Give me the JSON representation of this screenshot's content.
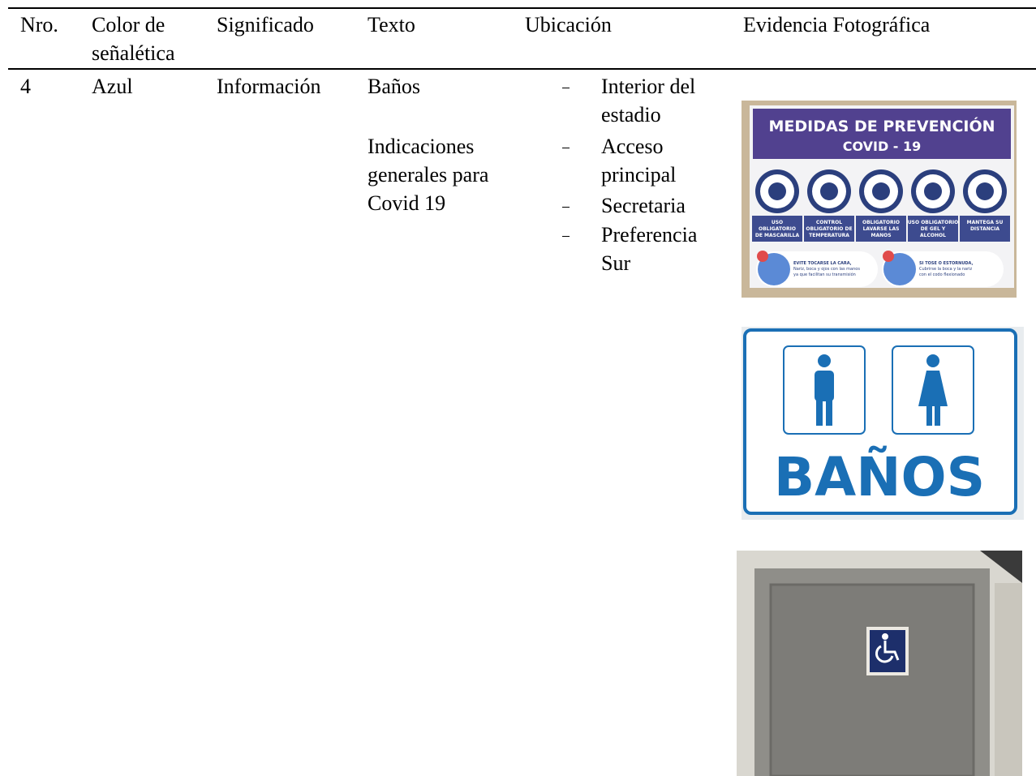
{
  "table": {
    "headers": [
      "Nro.",
      "Color de señalética",
      "Significado",
      "Texto",
      "Ubicación",
      "Evidencia Fotográfica"
    ],
    "rows": [
      {
        "nro": "4",
        "color": "Azul",
        "significado": "Información",
        "texto": [
          "Baños",
          "Indicaciones generales para Covid 19"
        ],
        "ubicacion": [
          "Interior del estadio",
          "Acceso principal",
          "Secretaria",
          "Preferencia Sur"
        ],
        "evidencia": {
          "covid_sign": {
            "title": "MEDIDAS DE PREVENCIÓN",
            "subtitle": "COVID - 19",
            "labels": [
              [
                "USO",
                "OBLIGATORIO",
                "DE MASCARILLA"
              ],
              [
                "CONTROL",
                "OBLIGATORIO DE",
                "TEMPERATURA"
              ],
              [
                "OBLIGATORIO",
                "LAVARSE LAS",
                "MANOS"
              ],
              [
                "USO OBLIGATORIO",
                "DE GEL Y",
                "ALCOHOL"
              ],
              [
                "MANTEGA SU",
                "DISTANCIA"
              ]
            ],
            "notes": [
              [
                "EVITE TOCARSE LA CARA,",
                "Nariz, boca y ojos con las manos",
                "ya que facilitan su transmisión"
              ],
              [
                "SI TOSE O ESTORNUDA,",
                "Cubrirse la boca y la nariz",
                "con el codo flexionado"
              ]
            ]
          },
          "banos_sign": {
            "title": "BAÑOS"
          }
        }
      }
    ]
  }
}
